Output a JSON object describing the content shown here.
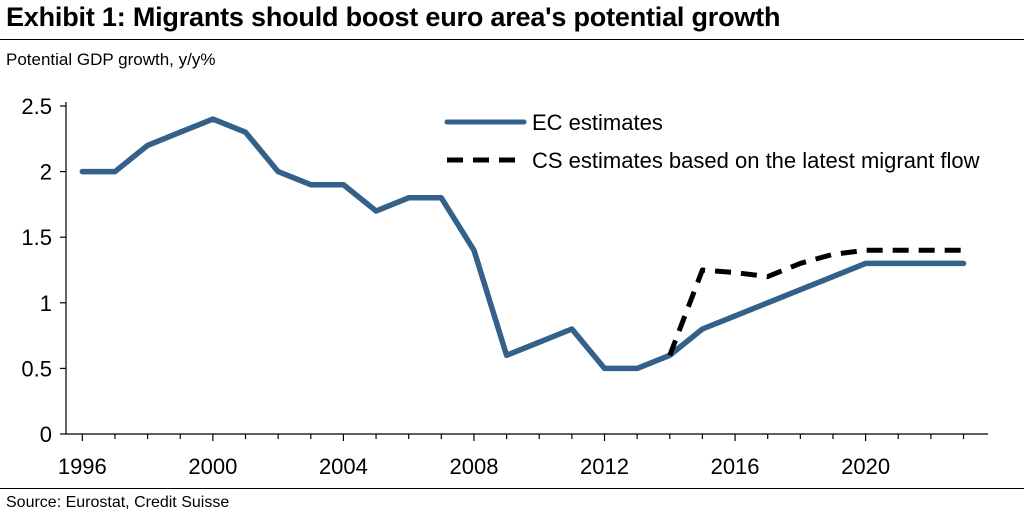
{
  "header": {
    "title": "Exhibit 1: Migrants should boost euro area's potential growth",
    "subtitle": "Potential GDP growth, y/y%"
  },
  "footer": {
    "source": "Source: Eurostat,  Credit Suisse"
  },
  "chart_data": {
    "type": "line",
    "title": "Exhibit 1: Migrants should boost euro area's potential growth",
    "ylabel": "Potential GDP growth, y/y%",
    "xlabel": "",
    "xlim": [
      1995.5,
      2023.75
    ],
    "ylim": [
      0,
      2.5
    ],
    "x_ticks": [
      1996,
      2000,
      2004,
      2008,
      2012,
      2016,
      2020
    ],
    "y_ticks": [
      0,
      0.5,
      1,
      1.5,
      2,
      2.5
    ],
    "y_tick_labels": [
      "0",
      "0.5",
      "1",
      "1.5",
      "2",
      "2.5"
    ],
    "legend_position": "top-right",
    "grid": false,
    "series": [
      {
        "name": "EC estimates",
        "style": "solid",
        "color": "#336189",
        "x": [
          1996,
          1997,
          1998,
          1999,
          2000,
          2001,
          2002,
          2003,
          2004,
          2005,
          2006,
          2007,
          2008,
          2009,
          2010,
          2011,
          2012,
          2013,
          2014,
          2015,
          2016,
          2017,
          2018,
          2019,
          2020,
          2021,
          2022,
          2023
        ],
        "values": [
          2.0,
          2.0,
          2.2,
          2.3,
          2.4,
          2.3,
          2.0,
          1.9,
          1.9,
          1.7,
          1.8,
          1.8,
          1.4,
          0.6,
          0.7,
          0.8,
          0.5,
          0.5,
          0.6,
          0.8,
          0.9,
          1.0,
          1.1,
          1.2,
          1.3,
          1.3,
          1.3,
          1.3
        ]
      },
      {
        "name": "CS estimates based on the latest migrant flow",
        "style": "dashed",
        "color": "#000000",
        "x": [
          2014,
          2015,
          2016,
          2017,
          2018,
          2019,
          2020,
          2021,
          2022,
          2023
        ],
        "values": [
          0.6,
          1.25,
          1.23,
          1.2,
          1.3,
          1.37,
          1.4,
          1.4,
          1.4,
          1.4
        ]
      }
    ]
  }
}
